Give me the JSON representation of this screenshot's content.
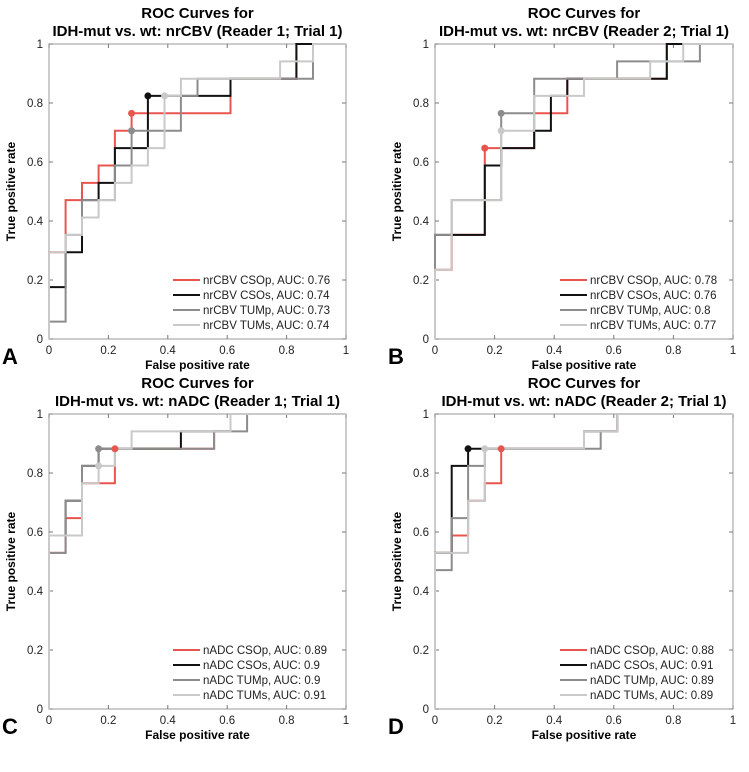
{
  "colors": {
    "CSOp": "#e8554e",
    "CSOs": "#111111",
    "TUMp": "#8c8c8c",
    "TUMs": "#c9c9c9"
  },
  "chart_data": [
    {
      "type": "line",
      "panel_letter": "A",
      "title": [
        "ROC Curves for",
        "IDH-mut vs. wt: nrCBV (Reader 1; Trial 1)"
      ],
      "xlabel": "False positive rate",
      "ylabel": "True positive rate",
      "xlim": [
        0,
        1
      ],
      "ylim": [
        0,
        1
      ],
      "xticks": [
        "0",
        "0.2",
        "0.4",
        "0.6",
        "0.8",
        "1"
      ],
      "yticks": [
        "0",
        "0.2",
        "0.4",
        "0.6",
        "0.8",
        "1"
      ],
      "legend_position": "bottom-right",
      "series": [
        {
          "name": "nrCBV CSOp, AUC: 0.76",
          "key": "CSOp",
          "marker": [
            0.278,
            0.765
          ],
          "x": [
            0,
            0,
            0.056,
            0.056,
            0.111,
            0.111,
            0.167,
            0.167,
            0.222,
            0.222,
            0.278,
            0.278,
            0.611,
            0.611,
            0.833,
            0.833,
            1
          ],
          "y": [
            0,
            0.294,
            0.294,
            0.471,
            0.471,
            0.529,
            0.529,
            0.588,
            0.588,
            0.706,
            0.706,
            0.765,
            0.765,
            0.882,
            0.882,
            1,
            1
          ]
        },
        {
          "name": "nrCBV CSOs, AUC: 0.74",
          "key": "CSOs",
          "marker": [
            0.333,
            0.824
          ],
          "x": [
            0,
            0,
            0.056,
            0.056,
            0.111,
            0.111,
            0.167,
            0.167,
            0.222,
            0.222,
            0.333,
            0.333,
            0.611,
            0.611,
            0.833,
            0.833,
            1
          ],
          "y": [
            0,
            0.176,
            0.176,
            0.294,
            0.294,
            0.471,
            0.471,
            0.529,
            0.529,
            0.647,
            0.647,
            0.824,
            0.824,
            0.882,
            0.882,
            1,
            1
          ]
        },
        {
          "name": "nrCBV TUMp, AUC: 0.73",
          "key": "TUMp",
          "marker": [
            0.278,
            0.706
          ],
          "x": [
            0,
            0,
            0.056,
            0.056,
            0.111,
            0.111,
            0.222,
            0.222,
            0.278,
            0.278,
            0.444,
            0.444,
            0.5,
            0.5,
            0.889,
            0.889,
            1
          ],
          "y": [
            0,
            0.059,
            0.059,
            0.353,
            0.353,
            0.471,
            0.471,
            0.588,
            0.588,
            0.706,
            0.706,
            0.824,
            0.824,
            0.882,
            0.882,
            1,
            1
          ]
        },
        {
          "name": "nrCBV TUMs, AUC: 0.74",
          "key": "TUMs",
          "marker": [
            0.389,
            0.824
          ],
          "x": [
            0,
            0,
            0.056,
            0.056,
            0.111,
            0.111,
            0.167,
            0.167,
            0.222,
            0.222,
            0.278,
            0.278,
            0.333,
            0.333,
            0.389,
            0.389,
            0.444,
            0.444,
            0.778,
            0.778,
            0.889,
            0.889,
            1
          ],
          "y": [
            0,
            0.294,
            0.294,
            0.353,
            0.353,
            0.412,
            0.412,
            0.471,
            0.471,
            0.529,
            0.529,
            0.588,
            0.588,
            0.647,
            0.647,
            0.824,
            0.824,
            0.882,
            0.882,
            0.941,
            0.941,
            1,
            1
          ]
        }
      ]
    },
    {
      "type": "line",
      "panel_letter": "B",
      "title": [
        "ROC Curves for",
        "IDH-mut vs. wt: nrCBV (Reader 2; Trial 1)"
      ],
      "xlabel": "False positive rate",
      "ylabel": "True positive rate",
      "xlim": [
        0,
        1
      ],
      "ylim": [
        0,
        1
      ],
      "xticks": [
        "0",
        "0.2",
        "0.4",
        "0.6",
        "0.8",
        "1"
      ],
      "yticks": [
        "0",
        "0.2",
        "0.4",
        "0.6",
        "0.8",
        "1"
      ],
      "legend_position": "bottom-right",
      "series": [
        {
          "name": "nrCBV CSOp, AUC: 0.78",
          "key": "CSOp",
          "marker": [
            0.167,
            0.647
          ],
          "x": [
            0,
            0,
            0.056,
            0.056,
            0.167,
            0.167,
            0.333,
            0.333,
            0.444,
            0.444,
            0.778,
            0.778,
            1
          ],
          "y": [
            0,
            0.235,
            0.235,
            0.353,
            0.353,
            0.647,
            0.647,
            0.765,
            0.765,
            0.882,
            0.882,
            1,
            1
          ]
        },
        {
          "name": "nrCBV CSOs, AUC: 0.76",
          "key": "CSOs",
          "marker": null,
          "x": [
            0,
            0,
            0.167,
            0.167,
            0.222,
            0.222,
            0.333,
            0.333,
            0.389,
            0.389,
            0.444,
            0.444,
            0.778,
            0.778,
            1
          ],
          "y": [
            0,
            0.353,
            0.353,
            0.588,
            0.588,
            0.647,
            0.647,
            0.706,
            0.706,
            0.824,
            0.824,
            0.882,
            0.882,
            1,
            1
          ]
        },
        {
          "name": "nrCBV TUMp, AUC: 0.8",
          "key": "TUMp",
          "marker": [
            0.222,
            0.765
          ],
          "x": [
            0,
            0,
            0.056,
            0.056,
            0.222,
            0.222,
            0.333,
            0.333,
            0.611,
            0.611,
            0.889,
            0.889,
            1
          ],
          "y": [
            0,
            0.353,
            0.353,
            0.471,
            0.471,
            0.765,
            0.765,
            0.882,
            0.882,
            0.941,
            0.941,
            1,
            1
          ]
        },
        {
          "name": "nrCBV TUMs, AUC: 0.77",
          "key": "TUMs",
          "marker": [
            0.222,
            0.706
          ],
          "x": [
            0,
            0,
            0.056,
            0.056,
            0.222,
            0.222,
            0.333,
            0.333,
            0.5,
            0.5,
            0.722,
            0.722,
            0.833,
            0.833,
            1
          ],
          "y": [
            0,
            0.235,
            0.235,
            0.471,
            0.471,
            0.706,
            0.706,
            0.824,
            0.824,
            0.882,
            0.882,
            0.941,
            0.941,
            1,
            1
          ]
        }
      ]
    },
    {
      "type": "line",
      "panel_letter": "C",
      "title": [
        "ROC Curves for",
        "IDH-mut vs. wt: nADC (Reader 1; Trial 1)"
      ],
      "xlabel": "False positive rate",
      "ylabel": "True positive rate",
      "xlim": [
        0,
        1
      ],
      "ylim": [
        0,
        1
      ],
      "xticks": [
        "0",
        "0.2",
        "0.4",
        "0.6",
        "0.8",
        "1"
      ],
      "yticks": [
        "0",
        "0.2",
        "0.4",
        "0.6",
        "0.8",
        "1"
      ],
      "legend_position": "bottom-right",
      "series": [
        {
          "name": "nADC CSOp, AUC: 0.89",
          "key": "CSOp",
          "marker": [
            0.222,
            0.882
          ],
          "x": [
            0,
            0,
            0.056,
            0.056,
            0.111,
            0.111,
            0.222,
            0.222,
            0.556,
            0.556,
            0.611,
            0.611,
            1
          ],
          "y": [
            0,
            0.529,
            0.529,
            0.647,
            0.647,
            0.765,
            0.765,
            0.882,
            0.882,
            0.941,
            0.941,
            1,
            1
          ]
        },
        {
          "name": "nADC CSOs, AUC: 0.9",
          "key": "CSOs",
          "marker": null,
          "x": [
            0,
            0,
            0.056,
            0.056,
            0.111,
            0.111,
            0.167,
            0.167,
            0.444,
            0.444,
            0.611,
            0.611,
            1
          ],
          "y": [
            0,
            0.588,
            0.588,
            0.706,
            0.706,
            0.824,
            0.824,
            0.882,
            0.882,
            0.941,
            0.941,
            1,
            1
          ]
        },
        {
          "name": "nADC TUMp, AUC: 0.9",
          "key": "TUMp",
          "marker": [
            0.167,
            0.882
          ],
          "x": [
            0,
            0,
            0.056,
            0.056,
            0.111,
            0.111,
            0.167,
            0.167,
            0.556,
            0.556,
            0.667,
            0.667,
            1
          ],
          "y": [
            0,
            0.529,
            0.529,
            0.706,
            0.706,
            0.824,
            0.824,
            0.882,
            0.882,
            0.941,
            0.941,
            1,
            1
          ]
        },
        {
          "name": "nADC TUMs, AUC: 0.91",
          "key": "TUMs",
          "marker": [
            0.167,
            0.824
          ],
          "x": [
            0,
            0,
            0.111,
            0.111,
            0.167,
            0.167,
            0.222,
            0.222,
            0.278,
            0.278,
            0.611,
            0.611,
            1
          ],
          "y": [
            0,
            0.588,
            0.588,
            0.765,
            0.765,
            0.824,
            0.824,
            0.882,
            0.882,
            0.941,
            0.941,
            1,
            1
          ]
        }
      ]
    },
    {
      "type": "line",
      "panel_letter": "D",
      "title": [
        "ROC Curves for",
        "IDH-mut vs. wt: nADC (Reader 2; Trial 1)"
      ],
      "xlabel": "False positive rate",
      "ylabel": "True positive rate",
      "xlim": [
        0,
        1
      ],
      "ylim": [
        0,
        1
      ],
      "xticks": [
        "0",
        "0.2",
        "0.4",
        "0.6",
        "0.8",
        "1"
      ],
      "yticks": [
        "0",
        "0.2",
        "0.4",
        "0.6",
        "0.8",
        "1"
      ],
      "legend_position": "bottom-right",
      "series": [
        {
          "name": "nADC CSOp, AUC: 0.88",
          "key": "CSOp",
          "marker": [
            0.222,
            0.882
          ],
          "x": [
            0,
            0,
            0.056,
            0.056,
            0.111,
            0.111,
            0.167,
            0.167,
            0.222,
            0.222,
            0.5,
            0.5,
            0.611,
            0.611,
            1
          ],
          "y": [
            0,
            0.529,
            0.529,
            0.588,
            0.588,
            0.706,
            0.706,
            0.765,
            0.765,
            0.882,
            0.882,
            0.941,
            0.941,
            1,
            1
          ]
        },
        {
          "name": "nADC CSOs, AUC: 0.91",
          "key": "CSOs",
          "marker": [
            0.111,
            0.882
          ],
          "x": [
            0,
            0,
            0.056,
            0.056,
            0.111,
            0.111,
            0.5,
            0.5,
            0.611,
            0.611,
            1
          ],
          "y": [
            0,
            0.529,
            0.529,
            0.824,
            0.824,
            0.882,
            0.882,
            0.941,
            0.941,
            1,
            1
          ]
        },
        {
          "name": "nADC TUMp, AUC: 0.89",
          "key": "TUMp",
          "marker": null,
          "x": [
            0,
            0,
            0.056,
            0.056,
            0.111,
            0.111,
            0.167,
            0.167,
            0.556,
            0.556,
            0.611,
            0.611,
            1
          ],
          "y": [
            0,
            0.471,
            0.471,
            0.647,
            0.647,
            0.824,
            0.824,
            0.882,
            0.882,
            0.941,
            0.941,
            1,
            1
          ]
        },
        {
          "name": "nADC TUMs, AUC: 0.89",
          "key": "TUMs",
          "marker": [
            0.167,
            0.882
          ],
          "x": [
            0,
            0,
            0.111,
            0.111,
            0.167,
            0.167,
            0.5,
            0.5,
            0.611,
            0.611,
            1
          ],
          "y": [
            0,
            0.529,
            0.529,
            0.706,
            0.706,
            0.882,
            0.882,
            0.941,
            0.941,
            1,
            1
          ]
        }
      ]
    }
  ]
}
